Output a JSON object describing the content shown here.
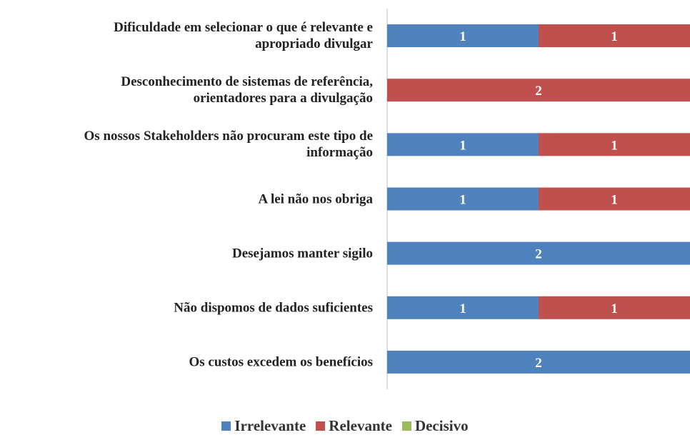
{
  "chart_data": {
    "type": "stacked-barh",
    "categories": [
      "Dificuldade em selecionar o que é relevante e\napropriado divulgar",
      "Desconhecimento de sistemas de referência,\norientadores para a divulgação",
      "Os nossos Stakeholders não procuram este tipo de\ninformação",
      "A lei não nos obriga",
      "Desejamos manter sigilo",
      "Não dispomos de dados suficientes",
      "Os custos excedem os benefícios"
    ],
    "series": [
      {
        "name": "Irrelevante",
        "color": "#4f81bd",
        "values": [
          1,
          null,
          1,
          1,
          2,
          1,
          2
        ]
      },
      {
        "name": "Relevante",
        "color": "#c0504d",
        "values": [
          1,
          2,
          1,
          1,
          null,
          1,
          null
        ]
      },
      {
        "name": "Decisivo",
        "color": "#9bbb59",
        "values": [
          null,
          null,
          null,
          null,
          null,
          null,
          null
        ]
      }
    ],
    "xlim": [
      0,
      2
    ],
    "legend": "bottom"
  }
}
